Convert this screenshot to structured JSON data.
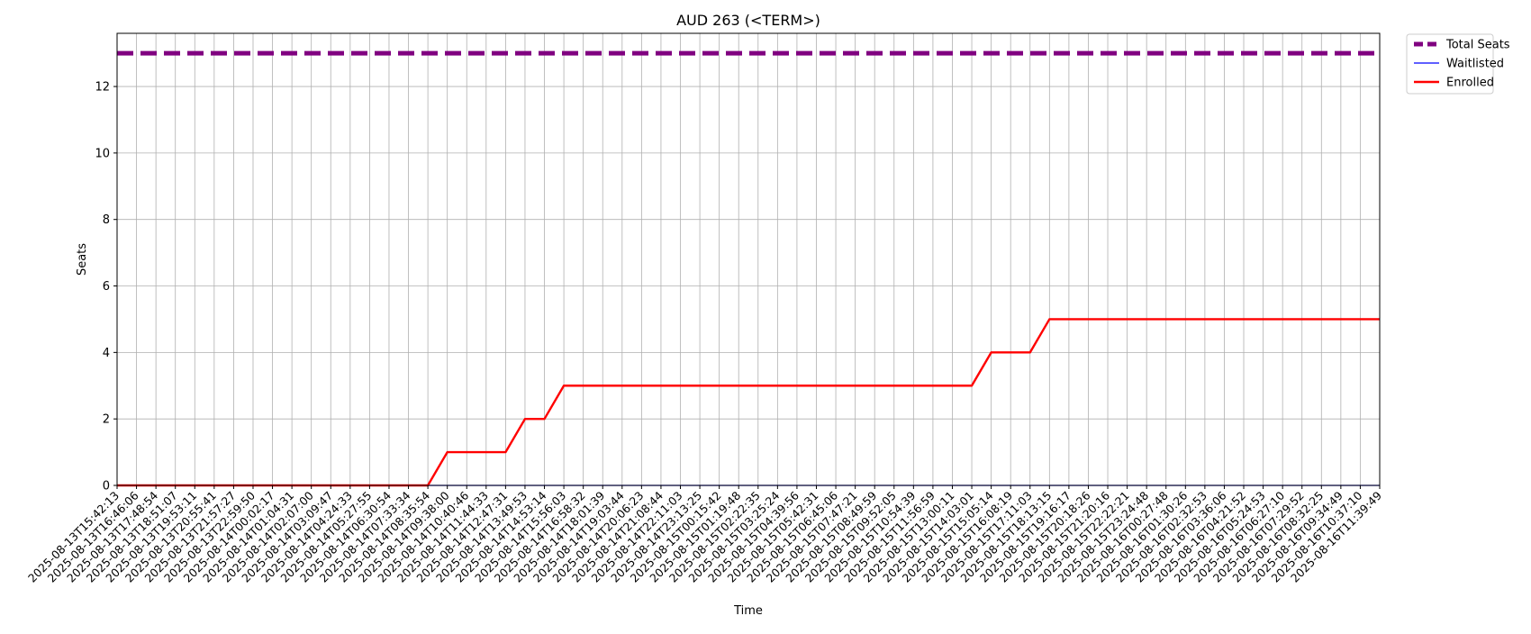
{
  "chart_data": {
    "type": "line",
    "title": "AUD 263 (<TERM>)",
    "xlabel": "Time",
    "ylabel": "Seats",
    "ylim": [
      0,
      13.6
    ],
    "yticks": [
      0,
      2,
      4,
      6,
      8,
      10,
      12
    ],
    "grid": true,
    "legend_position": "outside top-right",
    "x": [
      "2025-08-13T15:42:13",
      "2025-08-13T16:46:06",
      "2025-08-13T17:48:54",
      "2025-08-13T18:51:07",
      "2025-08-13T19:53:11",
      "2025-08-13T20:55:41",
      "2025-08-13T21:57:27",
      "2025-08-13T22:59:50",
      "2025-08-14T00:02:17",
      "2025-08-14T01:04:31",
      "2025-08-14T02:07:00",
      "2025-08-14T03:09:47",
      "2025-08-14T04:24:33",
      "2025-08-14T05:27:55",
      "2025-08-14T06:30:54",
      "2025-08-14T07:33:34",
      "2025-08-14T08:35:54",
      "2025-08-14T09:38:00",
      "2025-08-14T10:40:46",
      "2025-08-14T11:44:33",
      "2025-08-14T12:47:31",
      "2025-08-14T13:49:53",
      "2025-08-14T14:53:14",
      "2025-08-14T15:56:03",
      "2025-08-14T16:58:32",
      "2025-08-14T18:01:39",
      "2025-08-14T19:03:44",
      "2025-08-14T20:06:23",
      "2025-08-14T21:08:44",
      "2025-08-14T22:11:03",
      "2025-08-14T23:13:25",
      "2025-08-15T00:15:42",
      "2025-08-15T01:19:48",
      "2025-08-15T02:22:35",
      "2025-08-15T03:25:24",
      "2025-08-15T04:39:56",
      "2025-08-15T05:42:31",
      "2025-08-15T06:45:06",
      "2025-08-15T07:47:21",
      "2025-08-15T08:49:59",
      "2025-08-15T09:52:05",
      "2025-08-15T10:54:39",
      "2025-08-15T11:56:59",
      "2025-08-15T13:00:11",
      "2025-08-15T14:03:01",
      "2025-08-15T15:05:14",
      "2025-08-15T16:08:19",
      "2025-08-15T17:11:03",
      "2025-08-15T18:13:15",
      "2025-08-15T19:16:17",
      "2025-08-15T20:18:26",
      "2025-08-15T21:20:16",
      "2025-08-15T22:22:21",
      "2025-08-15T23:24:48",
      "2025-08-16T00:27:48",
      "2025-08-16T01:30:26",
      "2025-08-16T02:32:53",
      "2025-08-16T03:36:06",
      "2025-08-16T04:21:52",
      "2025-08-16T05:24:53",
      "2025-08-16T06:27:10",
      "2025-08-16T07:29:52",
      "2025-08-16T08:32:25",
      "2025-08-16T09:34:49",
      "2025-08-16T10:37:10",
      "2025-08-16T11:39:49"
    ],
    "series": [
      {
        "name": "Total Seats",
        "color": "#800080",
        "style": "dashed",
        "values": [
          13,
          13,
          13,
          13,
          13,
          13,
          13,
          13,
          13,
          13,
          13,
          13,
          13,
          13,
          13,
          13,
          13,
          13,
          13,
          13,
          13,
          13,
          13,
          13,
          13,
          13,
          13,
          13,
          13,
          13,
          13,
          13,
          13,
          13,
          13,
          13,
          13,
          13,
          13,
          13,
          13,
          13,
          13,
          13,
          13,
          13,
          13,
          13,
          13,
          13,
          13,
          13,
          13,
          13,
          13,
          13,
          13,
          13,
          13,
          13,
          13,
          13,
          13,
          13,
          13,
          13
        ]
      },
      {
        "name": "Waitlisted",
        "color": "#0000ff",
        "style": "solid",
        "values": [
          0,
          0,
          0,
          0,
          0,
          0,
          0,
          0,
          0,
          0,
          0,
          0,
          0,
          0,
          0,
          0,
          0,
          0,
          0,
          0,
          0,
          0,
          0,
          0,
          0,
          0,
          0,
          0,
          0,
          0,
          0,
          0,
          0,
          0,
          0,
          0,
          0,
          0,
          0,
          0,
          0,
          0,
          0,
          0,
          0,
          0,
          0,
          0,
          0,
          0,
          0,
          0,
          0,
          0,
          0,
          0,
          0,
          0,
          0,
          0,
          0,
          0,
          0,
          0,
          0,
          0
        ]
      },
      {
        "name": "Enrolled",
        "color": "#ff0000",
        "style": "solid",
        "values": [
          0,
          0,
          0,
          0,
          0,
          0,
          0,
          0,
          0,
          0,
          0,
          0,
          0,
          0,
          0,
          0,
          0,
          1,
          1,
          1,
          1,
          2,
          2,
          3,
          3,
          3,
          3,
          3,
          3,
          3,
          3,
          3,
          3,
          3,
          3,
          3,
          3,
          3,
          3,
          3,
          3,
          3,
          3,
          3,
          3,
          4,
          4,
          4,
          5,
          5,
          5,
          5,
          5,
          5,
          5,
          5,
          5,
          5,
          5,
          5,
          5,
          5,
          5,
          5,
          5,
          5
        ]
      }
    ]
  }
}
